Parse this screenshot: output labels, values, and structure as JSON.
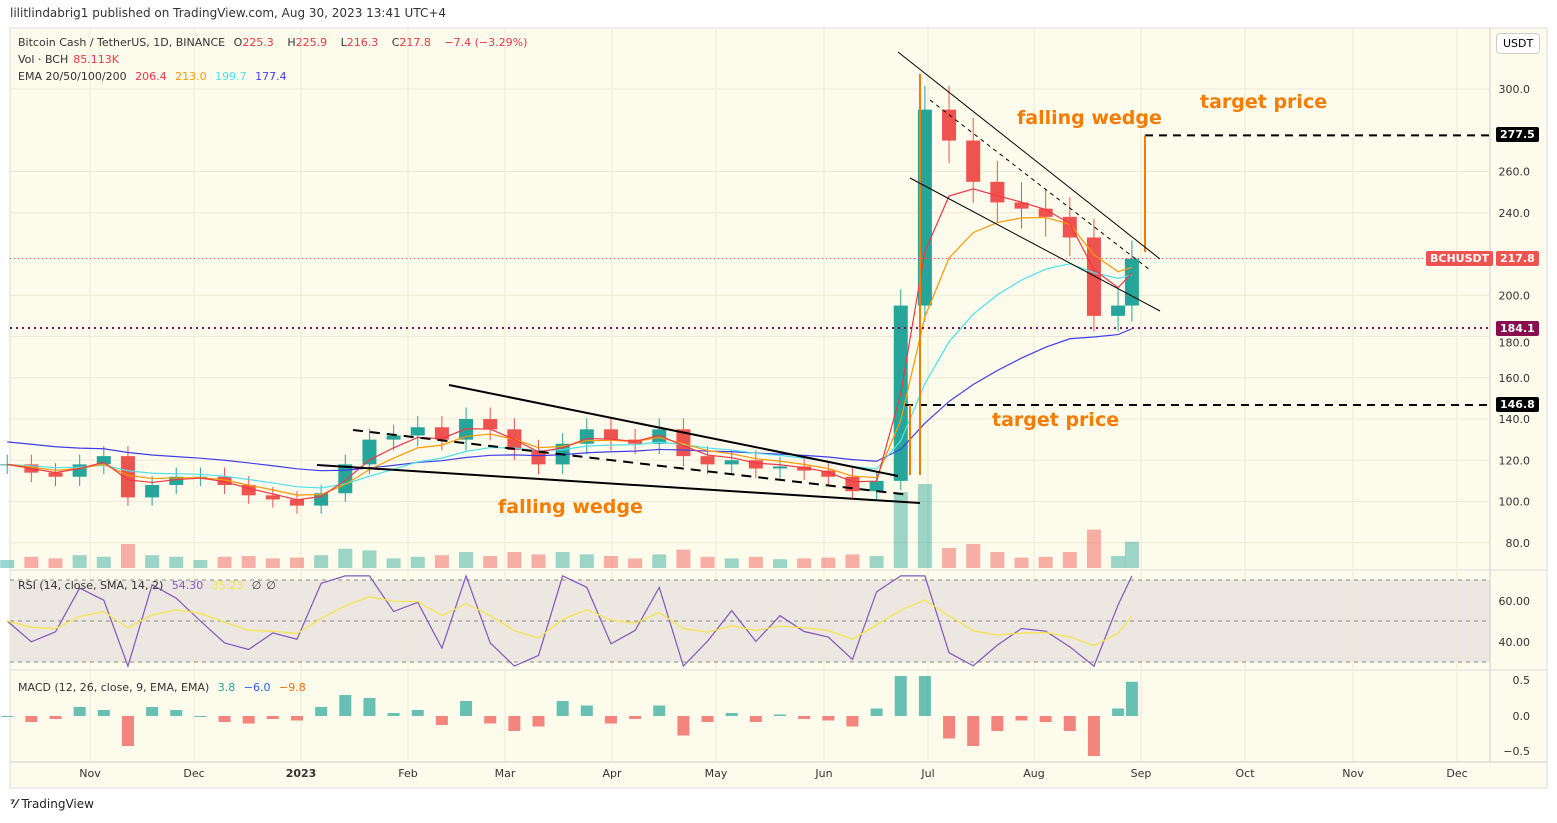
{
  "publisher": "lilitlindabrig1 published on TradingView.com, Aug 30, 2023 13:41 UTC+4",
  "legend": {
    "symbol": "Bitcoin Cash / TetherUS, 1D, BINANCE",
    "o_label": "O",
    "o": "225.3",
    "h_label": "H",
    "h": "225.9",
    "l_label": "L",
    "l": "216.3",
    "c_label": "C",
    "c": "217.8",
    "change": "−7.4 (−3.29%)",
    "vol_label": "Vol · BCH",
    "vol": "85.113K",
    "ema_label": "EMA 20/50/100/200",
    "ema20": "206.4",
    "ema50": "213.0",
    "ema100": "199.7",
    "ema200": "177.4"
  },
  "rsi_legend": {
    "label": "RSI (14, close, SMA, 14, 2)",
    "rsi": "54.30",
    "sma": "35.23",
    "x1": "∅",
    "x2": "∅"
  },
  "macd_legend": {
    "label": "MACD (12, 26, close, 9, EMA, EMA)",
    "hist": "3.8",
    "macd": "−6.0",
    "signal": "−9.8"
  },
  "currency_button": "USDT",
  "price_tags": {
    "symbol": "BCHUSDT",
    "last": "217.8",
    "level1": "184.1",
    "level2": "277.5",
    "level3": "146.8"
  },
  "annotations": {
    "wedge1": "falling wedge",
    "wedge2": "falling wedge",
    "target1": "target price",
    "target2": "target price"
  },
  "colors": {
    "up": "#26a69a",
    "down": "#ef5350",
    "ema20": "#f23645",
    "ema50": "#ff9800",
    "ema100": "#4de1ec",
    "ema200": "#3f3fe8",
    "annotation": "#f57c00",
    "level_tag": "#880e4f",
    "bg": "#fdfbec"
  },
  "footer": "TradingView",
  "chart_data": {
    "type": "candlestick",
    "price_axis": {
      "ticks": [
        "300.0",
        "260.0",
        "240.0",
        "200.0",
        "180.0",
        "160.0",
        "140.0",
        "120.0",
        "100.0",
        "80.0"
      ],
      "range": [
        70,
        330
      ]
    },
    "time_axis": [
      "Nov",
      "Dec",
      "2023",
      "Feb",
      "Mar",
      "Apr",
      "May",
      "Jun",
      "Jul",
      "Aug",
      "Sep",
      "Oct",
      "Nov",
      "Dec"
    ],
    "rsi_axis": [
      "60.00",
      "40.00"
    ],
    "macd_axis": [
      "0.5",
      "0.0",
      "−0.5"
    ],
    "weekly_closes": [
      [
        "2022-10-08",
        118
      ],
      [
        "2022-10-15",
        114
      ],
      [
        "2022-10-22",
        112
      ],
      [
        "2022-10-29",
        118
      ],
      [
        "2022-11-05",
        122
      ],
      [
        "2022-11-12",
        102
      ],
      [
        "2022-11-19",
        108
      ],
      [
        "2022-11-26",
        112
      ],
      [
        "2022-12-03",
        112
      ],
      [
        "2022-12-10",
        108
      ],
      [
        "2022-12-17",
        103
      ],
      [
        "2022-12-24",
        101
      ],
      [
        "2022-12-31",
        98
      ],
      [
        "2023-01-07",
        104
      ],
      [
        "2023-01-14",
        118
      ],
      [
        "2023-01-21",
        130
      ],
      [
        "2023-01-28",
        132
      ],
      [
        "2023-02-04",
        136
      ],
      [
        "2023-02-11",
        130
      ],
      [
        "2023-02-18",
        140
      ],
      [
        "2023-02-25",
        135
      ],
      [
        "2023-03-04",
        125
      ],
      [
        "2023-03-11",
        118
      ],
      [
        "2023-03-18",
        128
      ],
      [
        "2023-03-25",
        135
      ],
      [
        "2023-04-01",
        130
      ],
      [
        "2023-04-08",
        128
      ],
      [
        "2023-04-15",
        135
      ],
      [
        "2023-04-22",
        122
      ],
      [
        "2023-04-29",
        118
      ],
      [
        "2023-05-06",
        120
      ],
      [
        "2023-05-13",
        116
      ],
      [
        "2023-05-20",
        117
      ],
      [
        "2023-05-27",
        115
      ],
      [
        "2023-06-03",
        112
      ],
      [
        "2023-06-10",
        105
      ],
      [
        "2023-06-17",
        110
      ],
      [
        "2023-06-24",
        195
      ],
      [
        "2023-07-01",
        290
      ],
      [
        "2023-07-08",
        275
      ],
      [
        "2023-07-15",
        255
      ],
      [
        "2023-07-22",
        245
      ],
      [
        "2023-07-29",
        242
      ],
      [
        "2023-08-05",
        238
      ],
      [
        "2023-08-12",
        228
      ],
      [
        "2023-08-19",
        190
      ],
      [
        "2023-08-26",
        195
      ],
      [
        "2023-08-30",
        217.8
      ]
    ],
    "levels": [
      277.5,
      217.8,
      184.1,
      146.8
    ]
  }
}
